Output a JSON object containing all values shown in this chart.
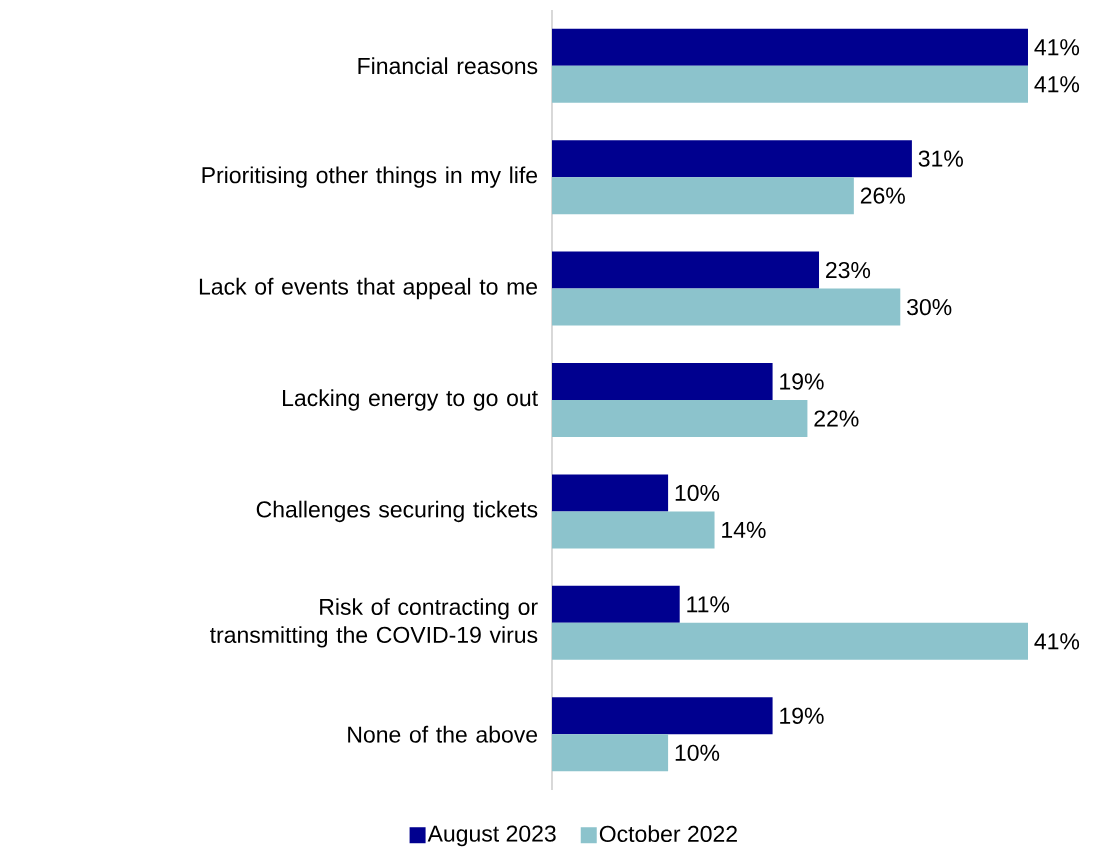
{
  "chart_data": {
    "type": "bar",
    "orientation": "horizontal",
    "legend": "bottom",
    "categories": [
      "Financial reasons",
      "Prioritising other things in my life",
      "Lack of events that appeal to me",
      "Lacking energy to go out",
      "Challenges securing tickets",
      "Risk of contracting or transmitting the COVID-19 virus",
      "None of the above"
    ],
    "series": [
      {
        "name": "August 2023",
        "color": "#00008f",
        "values": [
          41,
          31,
          23,
          19,
          10,
          11,
          19
        ],
        "value_labels": [
          "41%",
          "31%",
          "23%",
          "19%",
          "10%",
          "11%",
          "19%"
        ]
      },
      {
        "name": "October 2022",
        "color": "#8cc3cc",
        "values": [
          41,
          26,
          30,
          22,
          14,
          41,
          10
        ],
        "value_labels": [
          "41%",
          "26%",
          "30%",
          "22%",
          "14%",
          "41%",
          "10%"
        ]
      }
    ]
  }
}
